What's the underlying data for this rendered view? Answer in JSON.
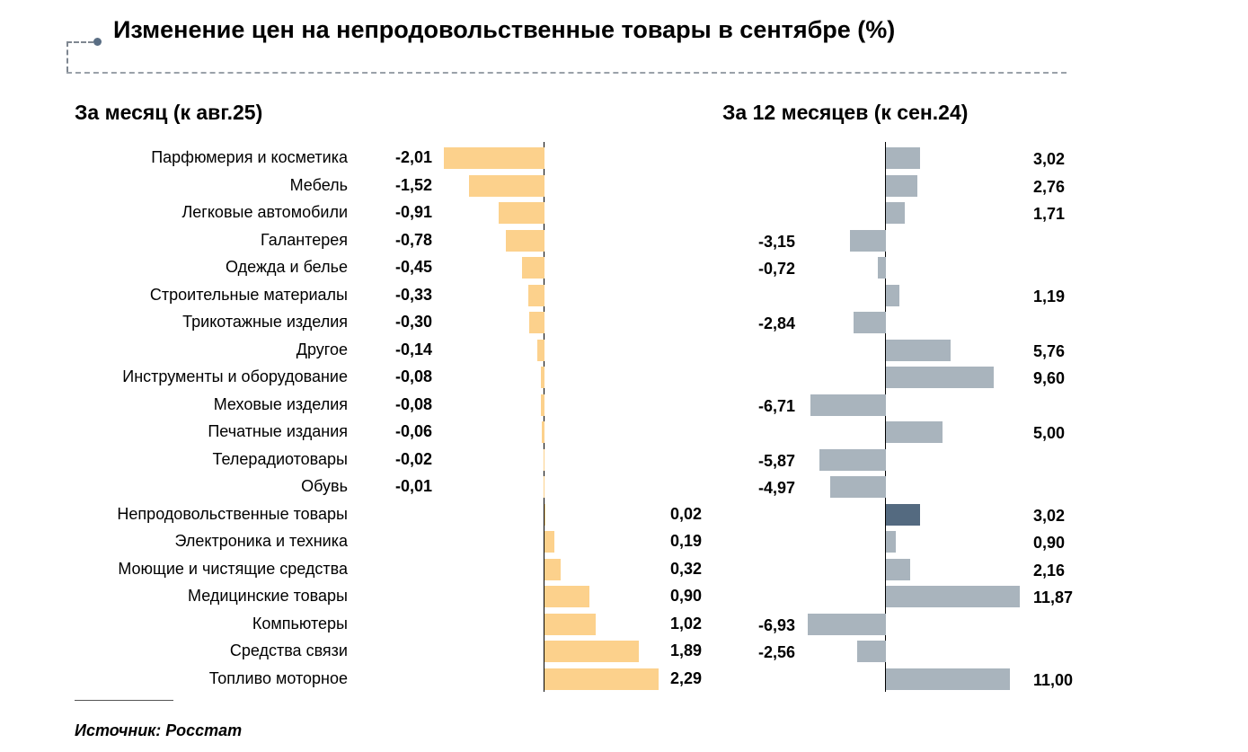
{
  "title": "Изменение цен на непродовольственные товары в сентябре (%)",
  "source": "Источник: Росстат",
  "colors": {
    "month": "#fcd18c",
    "year": "#a9b4bd",
    "highlight": "#546a80"
  },
  "chart_data": [
    {
      "type": "bar",
      "orientation": "horizontal",
      "title": "За месяц (к авг.25)",
      "categories": [
        "Парфюмерия и косметика",
        "Мебель",
        "Легковые автомобили",
        "Галантерея",
        "Одежда и белье",
        "Строительные материалы",
        "Трикотажные изделия",
        "Другое",
        "Инструменты и оборудование",
        "Меховые изделия",
        "Печатные издания",
        "Телерадиотовары",
        "Обувь",
        "Непродовольственные товары",
        "Электроника и техника",
        "Моющие и чистящие средства",
        "Медицинские товары",
        "Компьютеры",
        "Средства связи",
        "Топливо моторное"
      ],
      "values": [
        -2.01,
        -1.52,
        -0.91,
        -0.78,
        -0.45,
        -0.33,
        -0.3,
        -0.14,
        -0.08,
        -0.08,
        -0.06,
        -0.02,
        -0.01,
        0.02,
        0.19,
        0.32,
        0.9,
        1.02,
        1.89,
        2.29
      ],
      "labels": [
        "-2,01",
        "-1,52",
        "-0,91",
        "-0,78",
        "-0,45",
        "-0,33",
        "-0,30",
        "-0,14",
        "-0,08",
        "-0,08",
        "-0,06",
        "-0,02",
        "-0,01",
        "0,02",
        "0,19",
        "0,32",
        "0,90",
        "1,02",
        "1,89",
        "2,29"
      ]
    },
    {
      "type": "bar",
      "orientation": "horizontal",
      "title": "За 12 месяцев (к сен.24)",
      "values": [
        3.02,
        2.76,
        1.71,
        -3.15,
        -0.72,
        1.19,
        -2.84,
        5.76,
        9.6,
        -6.71,
        5.0,
        -5.87,
        -4.97,
        3.02,
        0.9,
        2.16,
        11.87,
        -6.93,
        -2.56,
        11.0
      ],
      "labels": [
        "3,02",
        "2,76",
        "1,71",
        "-3,15",
        "-0,72",
        "1,19",
        "-2,84",
        "5,76",
        "9,60",
        "-6,71",
        "5,00",
        "-5,87",
        "-4,97",
        "3,02",
        "0,90",
        "2,16",
        "11,87",
        "-6,93",
        "-2,56",
        "11,00"
      ],
      "highlight_index": 13
    }
  ]
}
